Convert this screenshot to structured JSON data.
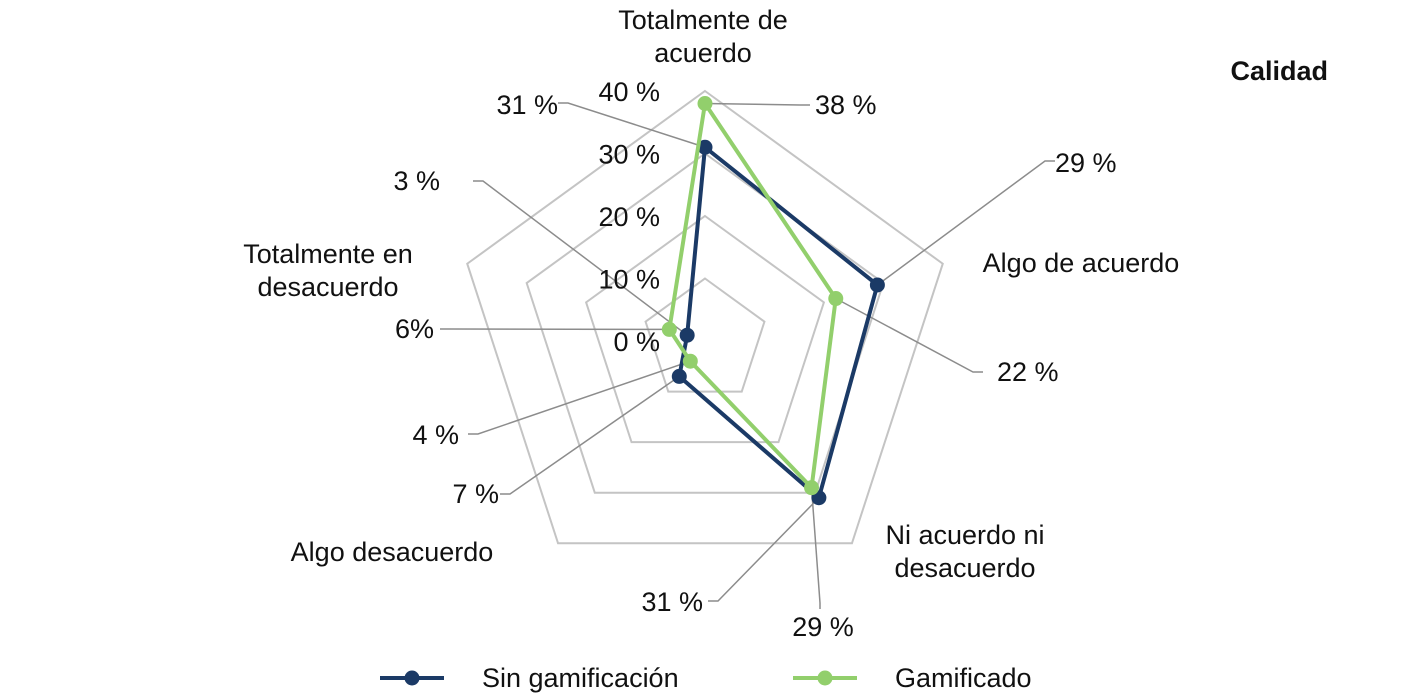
{
  "chart_data": {
    "type": "radar",
    "title": "Calidad",
    "categories": [
      [
        "Totalmente de",
        "acuerdo"
      ],
      [
        "Algo de acuerdo"
      ],
      [
        "Ni acuerdo ni",
        "desacuerdo"
      ],
      [
        "Algo desacuerdo"
      ],
      [
        "Totalmente en",
        "desacuerdo"
      ]
    ],
    "rlim": [
      0,
      40
    ],
    "ticks": [
      "0 %",
      "10 %",
      "20 %",
      "30 %",
      "40 %"
    ],
    "series": [
      {
        "name": "Sin gamificación",
        "color": "#1b3a66",
        "values": [
          31,
          29,
          31,
          7,
          3
        ],
        "labels": [
          "31 %",
          "29 %",
          "31 %",
          "7 %",
          "3 %"
        ]
      },
      {
        "name": "Gamificado",
        "color": "#92cf6c",
        "values": [
          38,
          22,
          29,
          4,
          6
        ],
        "labels": [
          "38 %",
          "22 %",
          "29 %",
          "4 %",
          "6%"
        ]
      }
    ],
    "grid": true,
    "legend": "bottom"
  }
}
